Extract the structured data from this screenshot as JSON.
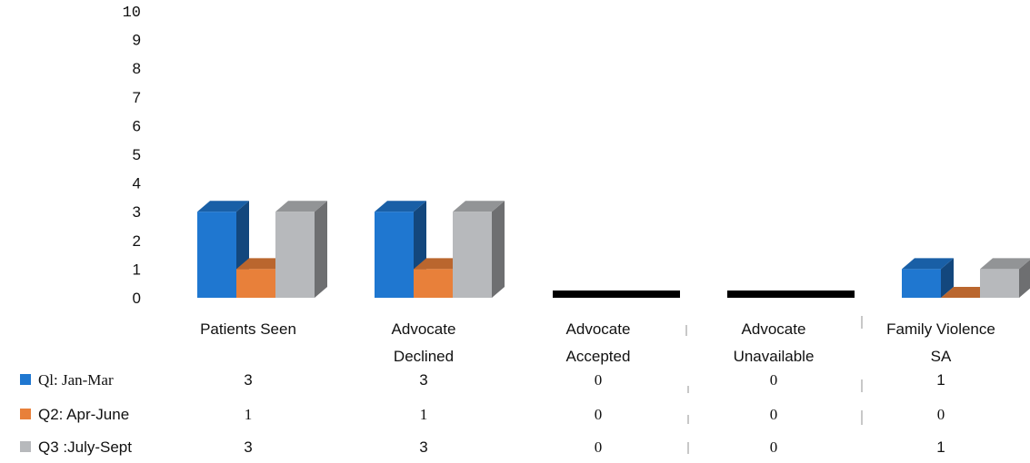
{
  "chart_data": {
    "type": "bar",
    "ylim": [
      0,
      10
    ],
    "y_ticks": [
      "0",
      "1",
      "2",
      "3",
      "4",
      "5",
      "6",
      "7",
      "8",
      "9",
      "10"
    ],
    "categories": [
      [
        "Patients Seen"
      ],
      [
        "Advocate",
        "Declined"
      ],
      [
        "Advocate",
        "Accepted"
      ],
      [
        "Advocate",
        "Unavailable"
      ],
      [
        "Family Violence",
        "SA"
      ]
    ],
    "series": [
      {
        "name": "Ql:  Jan-Mar",
        "color": "#1f77d0",
        "values": [
          3,
          3,
          0,
          0,
          1
        ],
        "labels": [
          "3",
          "3",
          "0",
          "0",
          "1"
        ]
      },
      {
        "name": "Q2: Apr-June",
        "color": "#e8803a",
        "values": [
          1,
          1,
          0,
          0,
          0
        ],
        "labels": [
          "1",
          "1",
          "0",
          "0",
          "0"
        ]
      },
      {
        "name": "Q3 :July-Sept",
        "color": "#b7b9bc",
        "values": [
          3,
          3,
          0,
          0,
          1
        ],
        "labels": [
          "3",
          "3",
          "0",
          "0",
          "1"
        ]
      }
    ],
    "grid": false,
    "legend": "data-table"
  }
}
